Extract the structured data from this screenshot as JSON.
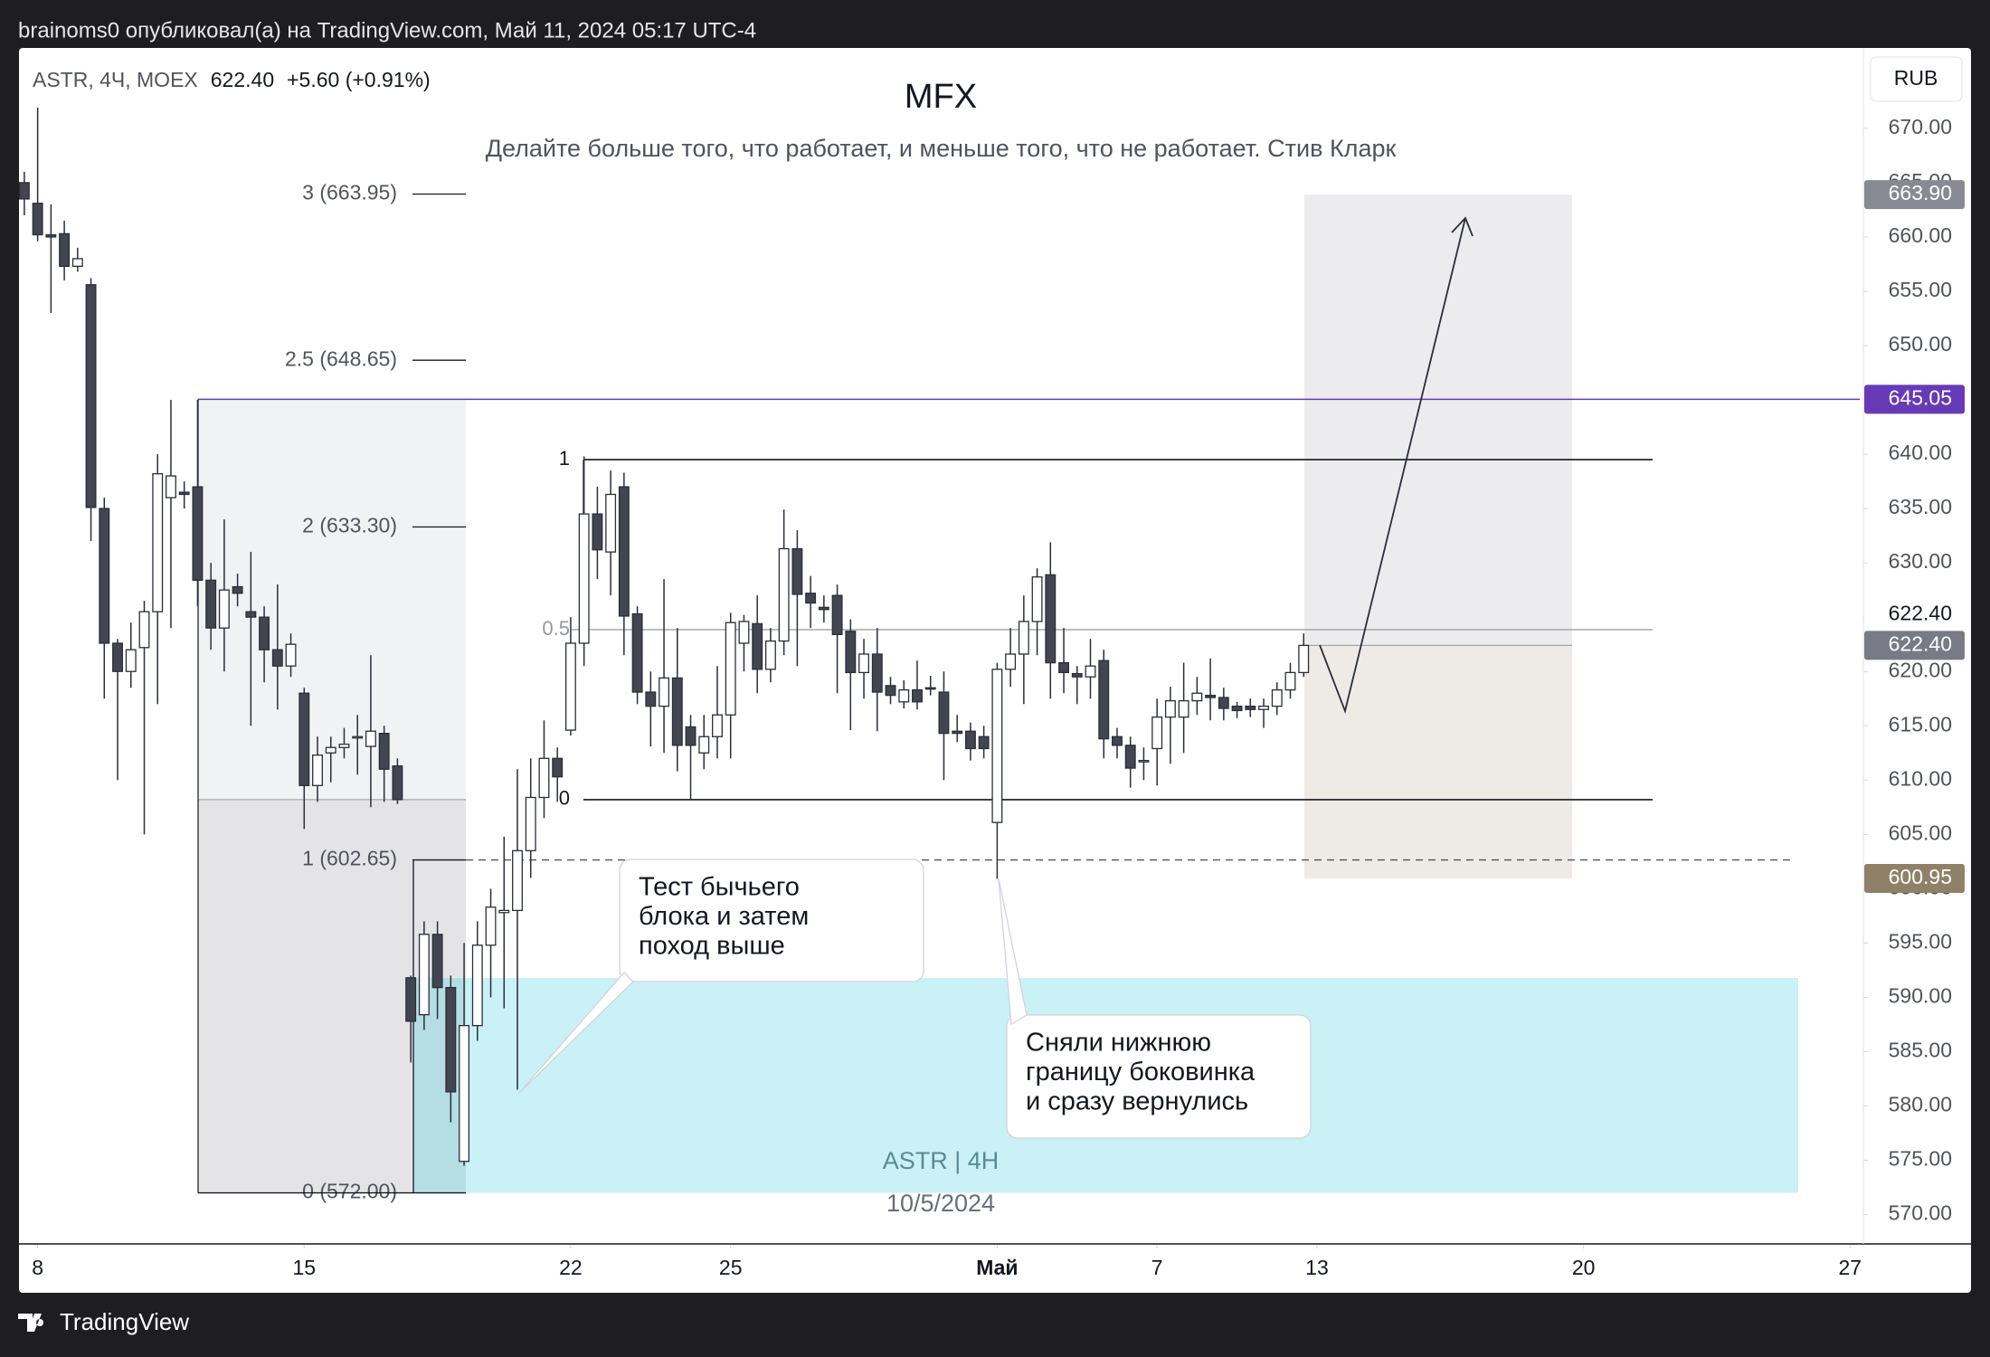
{
  "header": {
    "text": "brainoms0 опубликовал(а) на TradingView.com, Май 11, 2024 05:17 UTC-4"
  },
  "footer": {
    "brand": "TradingView"
  },
  "chart_data": {
    "type": "candlestick",
    "title": "MFX",
    "subtitle": "Делайте больше того, что работает, и меньше того, что не работает.  Стив Кларк",
    "symbol_info": {
      "symbol": "ASTR, 4Ч, MOEX",
      "price": "622.40",
      "change": "+5.60 (+0.91%)"
    },
    "currency": "RUB",
    "watermark": [
      "ASTR | 4H",
      "10/5/2024"
    ],
    "up_color": "#ffffff",
    "down_color": "#434651",
    "outline_color": "#2a2e39",
    "grid": false,
    "xlim": [
      -0.4,
      138
    ],
    "xticks": [
      {
        "value": 1,
        "label": "8"
      },
      {
        "value": 21,
        "label": "15"
      },
      {
        "value": 41,
        "label": "22"
      },
      {
        "value": 53,
        "label": "25"
      },
      {
        "value": 73,
        "label": "Май"
      },
      {
        "value": 85,
        "label": "7"
      },
      {
        "value": 97,
        "label": "13"
      },
      {
        "value": 117,
        "label": "20"
      },
      {
        "value": 137,
        "label": "27"
      }
    ],
    "ylim": [
      567.3,
      677.4
    ],
    "yticks": [
      {
        "value": 570,
        "label": "570.00"
      },
      {
        "value": 575,
        "label": "575.00"
      },
      {
        "value": 580,
        "label": "580.00"
      },
      {
        "value": 585,
        "label": "585.00"
      },
      {
        "value": 590,
        "label": "590.00"
      },
      {
        "value": 595,
        "label": "595.00"
      },
      {
        "value": 600,
        "label": "600.00"
      },
      {
        "value": 605,
        "label": "605.00"
      },
      {
        "value": 610,
        "label": "610.00"
      },
      {
        "value": 615,
        "label": "615.00"
      },
      {
        "value": 620,
        "label": "620.00"
      },
      {
        "value": 625,
        "label": "625.00"
      },
      {
        "value": 630,
        "label": "630.00"
      },
      {
        "value": 635,
        "label": "635.00"
      },
      {
        "value": 640,
        "label": "640.00"
      },
      {
        "value": 645,
        "label": "645.00"
      },
      {
        "value": 650,
        "label": "650.00"
      },
      {
        "value": 655,
        "label": "655.00"
      },
      {
        "value": 660,
        "label": "660.00"
      },
      {
        "value": 665,
        "label": "665.00"
      },
      {
        "value": 670,
        "label": "670.00"
      }
    ],
    "x": [
      0,
      1,
      2,
      3,
      4,
      5,
      6,
      7,
      8,
      9,
      10,
      11,
      12,
      13,
      14,
      15,
      16,
      17,
      18,
      19,
      20,
      21,
      22,
      23,
      24,
      25,
      26,
      27,
      28,
      29,
      30,
      31,
      32,
      33,
      34,
      35,
      36,
      37,
      38,
      39,
      40,
      41,
      42,
      43,
      44,
      45,
      46,
      47,
      48,
      49,
      50,
      51,
      52,
      53,
      54,
      55,
      56,
      57,
      58,
      59,
      60,
      61,
      62,
      63,
      64,
      65,
      66,
      67,
      68,
      69,
      70,
      71,
      72,
      73,
      74,
      75,
      76,
      77,
      78,
      79,
      80,
      81,
      82,
      83,
      84,
      85,
      86,
      87,
      88,
      89,
      90,
      91,
      92,
      93,
      94,
      95,
      96
    ],
    "open": [
      665,
      663.1,
      660.2,
      660.3,
      657.3,
      655.6,
      635,
      622.6,
      620,
      622.2,
      625.5,
      636,
      636.5,
      637,
      628.4,
      624,
      627.8,
      625.5,
      625,
      622,
      620.5,
      618,
      609.5,
      612.5,
      613,
      614,
      613.1,
      614.3,
      611.3,
      591.8,
      588.4,
      595.8,
      590.9,
      574.9,
      587.4,
      594.8,
      597.8,
      598,
      603.5,
      608.4,
      612,
      614.6,
      622.6,
      634.5,
      631,
      637,
      625.3,
      618.1,
      616.8,
      619.4,
      614.9,
      612.5,
      614,
      616,
      622.6,
      624.4,
      620.2,
      622.8,
      631.3,
      627.2,
      625.9,
      627,
      623.7,
      619.9,
      621.6,
      618.7,
      617.2,
      618.3,
      618.5,
      618.1,
      614.5,
      614.5,
      614,
      606.1,
      620.2,
      621.6,
      624.6,
      628.9,
      620.8,
      619.8,
      619.5,
      621,
      614,
      613.2,
      611.7,
      612.9,
      615.8,
      615.8,
      617.3,
      617.8,
      617.6,
      616.8,
      616.8,
      616.5,
      616.8,
      618.3,
      619.9
    ],
    "high": [
      666,
      671.9,
      663,
      661.5,
      659,
      656.2,
      636,
      623,
      624.5,
      626.5,
      640,
      645,
      637.5,
      645,
      630,
      634,
      629,
      631,
      626,
      628,
      623.5,
      618.5,
      614,
      614,
      614.8,
      616,
      621.5,
      615,
      612,
      592,
      597,
      597,
      592,
      595,
      597,
      600,
      604.8,
      611,
      612,
      615.5,
      613,
      625,
      639.8,
      637,
      638.5,
      638.3,
      626,
      620,
      628.5,
      624,
      616,
      616,
      620.5,
      625.4,
      625.2,
      627,
      624,
      634.9,
      633,
      628.8,
      627,
      628,
      624.8,
      623,
      624,
      619.5,
      619.2,
      621,
      619.6,
      620,
      616,
      615.3,
      615,
      620.8,
      624,
      627,
      629.5,
      631.9,
      624,
      620.5,
      623,
      622,
      614.8,
      614,
      613,
      617.5,
      618.6,
      620.8,
      619.5,
      621.2,
      618.5,
      617.2,
      617.5,
      617.5,
      619,
      620.8,
      623.5
    ],
    "low": [
      662,
      659.6,
      653,
      656,
      656.8,
      632,
      617.5,
      610,
      618.5,
      605,
      617,
      624,
      635,
      626,
      622,
      620,
      626,
      615,
      619,
      616.5,
      619.5,
      605.5,
      608,
      609.8,
      612,
      610.5,
      607.5,
      608,
      607.8,
      584,
      587,
      588,
      578.5,
      574.5,
      586,
      590,
      589,
      581.5,
      601,
      606.5,
      608,
      614.1,
      620.5,
      628.5,
      627,
      621.5,
      617,
      613.1,
      612.5,
      610.8,
      608.2,
      611,
      612,
      612,
      620,
      618,
      619,
      621.5,
      620.5,
      624,
      624.5,
      618,
      614.6,
      617.5,
      614.5,
      617,
      616.6,
      616.5,
      617.8,
      610,
      613.5,
      611.8,
      612,
      600.9,
      618.6,
      617,
      621.5,
      617.5,
      618,
      617,
      617.5,
      612,
      612,
      609.3,
      610,
      609.5,
      611.5,
      612.5,
      616,
      615.5,
      615.5,
      615.7,
      615.8,
      614.8,
      616,
      617.5,
      619.5
    ],
    "close": [
      663.5,
      660.2,
      660,
      657.3,
      658,
      635.1,
      622.6,
      620,
      622,
      625.5,
      638.2,
      638,
      636.3,
      628.4,
      624,
      627.5,
      627.2,
      625,
      622,
      620.5,
      622.5,
      609.5,
      612.3,
      613,
      613.3,
      614,
      614.5,
      611,
      608.2,
      587.8,
      595.8,
      590.9,
      581.3,
      587.4,
      594.8,
      598.3,
      598,
      603.5,
      608.4,
      612,
      610.3,
      622.6,
      634.5,
      631.2,
      636.3,
      625.1,
      618.1,
      616.8,
      619.4,
      613.2,
      613.2,
      614,
      616,
      624.5,
      624.6,
      620.2,
      622.8,
      631.3,
      627.1,
      626.3,
      625.7,
      623.4,
      619.9,
      621.6,
      618.1,
      617.8,
      618.3,
      617.2,
      618.4,
      614.3,
      614.3,
      612.9,
      612.9,
      620.2,
      621.6,
      624.6,
      628.7,
      620.8,
      619.9,
      619.5,
      620.5,
      613.8,
      613.2,
      611.1,
      611.8,
      615.8,
      617.3,
      617.3,
      618,
      617.6,
      616.6,
      616.4,
      616.5,
      616.8,
      618.3,
      619.9,
      622.4
    ],
    "fib_levels": [
      {
        "value": 663.95,
        "label": "3 (663.95)"
      },
      {
        "value": 648.65,
        "label": "2.5 (648.65)"
      },
      {
        "value": 633.3,
        "label": "2 (633.30)"
      },
      {
        "value": 602.65,
        "label": "1 (602.65)"
      },
      {
        "value": 572,
        "label": "0 (572.00)"
      }
    ],
    "range_levels": [
      {
        "value": 639.5,
        "label": "1"
      },
      {
        "value": 623.85,
        "label": "0.5"
      },
      {
        "value": 608.2,
        "label": "0"
      }
    ],
    "price_labels": [
      {
        "value": 663.9,
        "label": "663.90",
        "bg": "#878a93",
        "fg": "#ffffff"
      },
      {
        "value": 645.05,
        "label": "645.05",
        "bg": "#673ab7",
        "fg": "#ffffff"
      },
      {
        "value": 622.4,
        "label": "622.40",
        "bg": "#ffffff",
        "fg": "#131722"
      },
      {
        "value": 622.4,
        "label": "622.40",
        "bg": "#787b86",
        "fg": "#ffffff"
      },
      {
        "value": 600.95,
        "label": "600.95",
        "bg": "#8f8168",
        "fg": "#ffffff"
      }
    ],
    "callouts": [
      {
        "lines": [
          "Тест бычьего",
          "блока и затем",
          "поход выше"
        ]
      },
      {
        "lines": [
          "Сняли нижнюю",
          "границу боковинка",
          "и сразу вернулись"
        ]
      }
    ]
  }
}
